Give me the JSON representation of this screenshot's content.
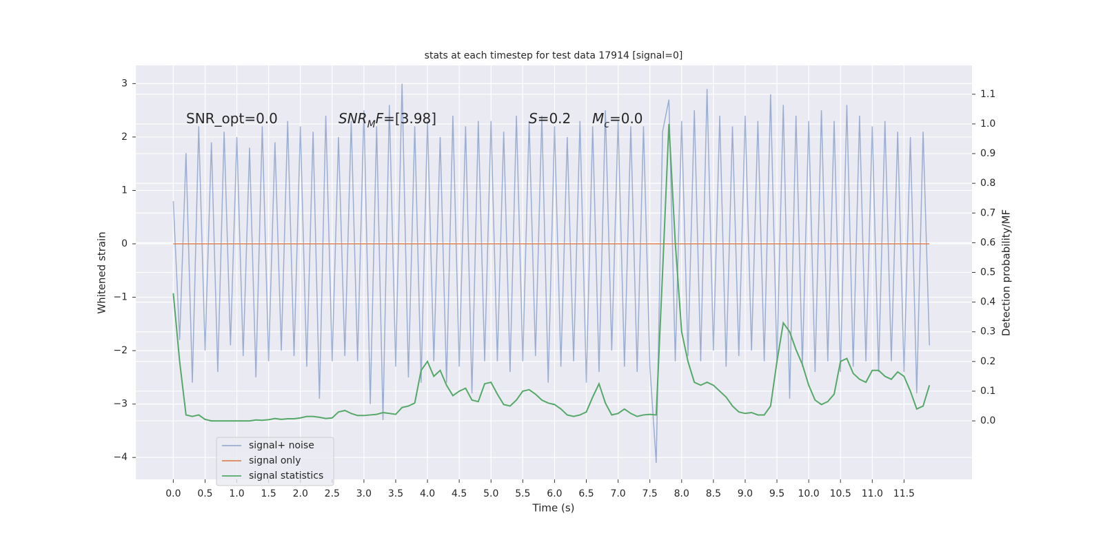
{
  "chart_data": {
    "type": "line",
    "title": "stats at each timestep for test data 17914 [signal=0]",
    "xlabel": "Time (s)",
    "ylabel": "Whitened strain",
    "y2label": "Detection probability/MF",
    "annotations": [
      [
        "SNR_opt=0.0"
      ],
      [
        "SNR",
        "M",
        "F",
        "=[3.98]"
      ],
      [
        "S",
        "=0.2"
      ],
      [
        "M",
        "c",
        "=0.0"
      ]
    ],
    "x": [
      0.0,
      0.1,
      0.2,
      0.3,
      0.4,
      0.5,
      0.6,
      0.7,
      0.8,
      0.9,
      1.0,
      1.1,
      1.2,
      1.3,
      1.4,
      1.5,
      1.6,
      1.7,
      1.8,
      1.9,
      2.0,
      2.1,
      2.2,
      2.3,
      2.4,
      2.5,
      2.6,
      2.7,
      2.8,
      2.9,
      3.0,
      3.1,
      3.2,
      3.3,
      3.4,
      3.5,
      3.6,
      3.7,
      3.8,
      3.9,
      4.0,
      4.1,
      4.2,
      4.3,
      4.4,
      4.5,
      4.6,
      4.7,
      4.8,
      4.9,
      5.0,
      5.1,
      5.2,
      5.3,
      5.4,
      5.5,
      5.6,
      5.7,
      5.8,
      5.9,
      6.0,
      6.1,
      6.2,
      6.3,
      6.4,
      6.5,
      6.6,
      6.7,
      6.8,
      6.9,
      7.0,
      7.1,
      7.2,
      7.3,
      7.4,
      7.5,
      7.6,
      7.7,
      7.8,
      7.9,
      8.0,
      8.1,
      8.2,
      8.3,
      8.4,
      8.5,
      8.6,
      8.7,
      8.8,
      8.9,
      9.0,
      9.1,
      9.2,
      9.3,
      9.4,
      9.5,
      9.6,
      9.7,
      9.8,
      9.9,
      10.0,
      10.1,
      10.2,
      10.3,
      10.4,
      10.5,
      10.6,
      10.7,
      10.8,
      10.9,
      11.0,
      11.1,
      11.2,
      11.3,
      11.4,
      11.5,
      11.6,
      11.7,
      11.8,
      11.9
    ],
    "series": [
      {
        "name": "signal+ noise",
        "color": "#4c72b0",
        "opacity": 0.5,
        "values": [
          0.8,
          -1.8,
          1.7,
          -2.6,
          2.2,
          -2.0,
          1.9,
          -2.4,
          2.1,
          -1.9,
          2.0,
          -2.1,
          1.8,
          -2.5,
          2.2,
          -2.2,
          1.9,
          -2.0,
          2.3,
          -2.1,
          2.2,
          -2.3,
          2.1,
          -2.9,
          2.4,
          -2.2,
          2.0,
          -2.1,
          2.3,
          -2.2,
          2.5,
          -3.0,
          2.2,
          -3.3,
          2.6,
          -2.3,
          3.0,
          -2.5,
          2.2,
          -2.6,
          2.3,
          -2.2,
          2.0,
          -2.6,
          2.4,
          -2.3,
          2.2,
          -2.8,
          2.3,
          -2.2,
          2.3,
          -2.2,
          2.1,
          -2.4,
          2.4,
          -2.2,
          2.3,
          -2.1,
          2.4,
          -2.6,
          2.2,
          -2.3,
          2.0,
          -2.2,
          2.3,
          -2.6,
          2.2,
          -2.4,
          2.5,
          -2.0,
          2.3,
          -2.3,
          2.2,
          -2.4,
          2.2,
          -2.3,
          -4.1,
          2.1,
          2.7,
          -2.2,
          2.3,
          -2.1,
          2.5,
          -2.2,
          2.9,
          -2.0,
          2.4,
          -2.3,
          2.2,
          -2.1,
          2.4,
          -2.0,
          2.3,
          -2.2,
          2.8,
          -2.2,
          2.6,
          -2.9,
          2.4,
          -2.3,
          2.3,
          -2.4,
          2.5,
          -2.2,
          2.3,
          -2.4,
          2.6,
          -2.3,
          2.4,
          -2.2,
          2.2,
          -2.4,
          2.3,
          -2.2,
          2.1,
          -2.4,
          2.0,
          -2.8,
          2.1,
          -1.9
        ]
      },
      {
        "name": "signal only",
        "color": "#dd8452",
        "opacity": 1,
        "values": [
          0,
          0,
          0,
          0,
          0,
          0,
          0,
          0,
          0,
          0,
          0,
          0,
          0,
          0,
          0,
          0,
          0,
          0,
          0,
          0,
          0,
          0,
          0,
          0,
          0,
          0,
          0,
          0,
          0,
          0,
          0,
          0,
          0,
          0,
          0,
          0,
          0,
          0,
          0,
          0,
          0,
          0,
          0,
          0,
          0,
          0,
          0,
          0,
          0,
          0,
          0,
          0,
          0,
          0,
          0,
          0,
          0,
          0,
          0,
          0,
          0,
          0,
          0,
          0,
          0,
          0,
          0,
          0,
          0,
          0,
          0,
          0,
          0,
          0,
          0,
          0,
          0,
          0,
          0,
          0,
          0,
          0,
          0,
          0,
          0,
          0,
          0,
          0,
          0,
          0,
          0,
          0,
          0,
          0,
          0,
          0,
          0,
          0,
          0,
          0,
          0,
          0,
          0,
          0,
          0,
          0,
          0,
          0,
          0,
          0,
          0,
          0,
          0,
          0,
          0,
          0,
          0,
          0,
          0,
          0
        ]
      },
      {
        "name": "signal statistics",
        "color": "#55a868",
        "opacity": 1,
        "axis": "y2",
        "values": [
          0.43,
          0.2,
          0.02,
          0.015,
          0.02,
          0.005,
          0.0,
          0.0,
          0.0,
          0.0,
          0.0,
          0.0,
          0.0,
          0.003,
          0.002,
          0.004,
          0.008,
          0.005,
          0.007,
          0.007,
          0.01,
          0.015,
          0.015,
          0.012,
          0.008,
          0.01,
          0.03,
          0.035,
          0.025,
          0.018,
          0.018,
          0.02,
          0.022,
          0.028,
          0.025,
          0.022,
          0.045,
          0.05,
          0.06,
          0.17,
          0.2,
          0.15,
          0.17,
          0.12,
          0.085,
          0.1,
          0.11,
          0.07,
          0.065,
          0.125,
          0.13,
          0.09,
          0.055,
          0.05,
          0.07,
          0.1,
          0.105,
          0.09,
          0.07,
          0.06,
          0.055,
          0.04,
          0.02,
          0.015,
          0.02,
          0.03,
          0.08,
          0.125,
          0.06,
          0.02,
          0.025,
          0.04,
          0.025,
          0.015,
          0.02,
          0.022,
          0.02,
          0.5,
          1.0,
          0.6,
          0.3,
          0.2,
          0.13,
          0.12,
          0.13,
          0.12,
          0.1,
          0.08,
          0.05,
          0.03,
          0.025,
          0.028,
          0.02,
          0.02,
          0.05,
          0.2,
          0.33,
          0.3,
          0.24,
          0.19,
          0.12,
          0.07,
          0.055,
          0.065,
          0.09,
          0.2,
          0.21,
          0.16,
          0.14,
          0.13,
          0.17,
          0.17,
          0.15,
          0.14,
          0.165,
          0.15,
          0.1,
          0.04,
          0.05,
          0.12
        ]
      }
    ],
    "xlim": [
      -0.59,
      12.57
    ],
    "xticks": [
      {
        "value": 0,
        "label": "0.0"
      },
      0.5,
      {
        "value": 1,
        "label": "1.0"
      },
      1.5,
      {
        "value": 2,
        "label": "2.0"
      },
      2.5,
      {
        "value": 3,
        "label": "3.0"
      },
      3.5,
      {
        "value": 4,
        "label": "4.0"
      },
      4.5,
      {
        "value": 5,
        "label": "5.0"
      },
      5.5,
      {
        "value": 6,
        "label": "6.0"
      },
      6.5,
      {
        "value": 7,
        "label": "7.0"
      },
      7.5,
      {
        "value": 8,
        "label": "8.0"
      },
      8.5,
      {
        "value": 9,
        "label": "9.0"
      },
      9.5,
      {
        "value": 10,
        "label": "10.0"
      },
      10.5,
      {
        "value": 11,
        "label": "11.0"
      },
      11.5
    ],
    "ylim": [
      -4.41,
      3.34
    ],
    "yticks": [
      {
        "value": -4,
        "label": "−4"
      },
      {
        "value": -3,
        "label": "−3"
      },
      {
        "value": -2,
        "label": "−2"
      },
      {
        "value": -1,
        "label": "−1"
      },
      0,
      1,
      2,
      3
    ],
    "y2lim": [
      -0.197,
      1.197
    ],
    "y2ticks": [
      {
        "value": 0,
        "label": "0.0"
      },
      0.1,
      0.2,
      0.3,
      0.4,
      0.5,
      0.6,
      0.7,
      0.8,
      0.9,
      {
        "value": 1,
        "label": "1.0"
      },
      1.1
    ],
    "grid": true,
    "legend": "lower left"
  }
}
